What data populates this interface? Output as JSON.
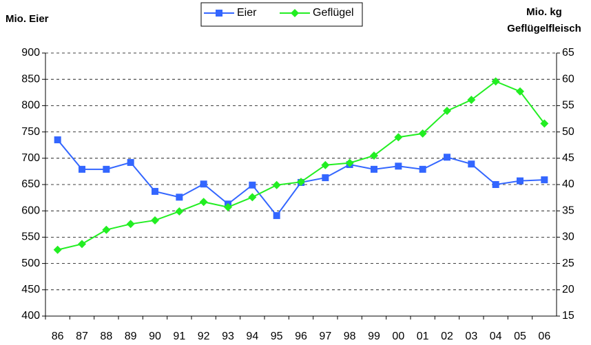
{
  "chart_data": {
    "type": "line",
    "y_label": "Mio. Eier",
    "y2_label": [
      "Mio. kg",
      "Geflügelfleisch"
    ],
    "categories": [
      "86",
      "87",
      "88",
      "89",
      "90",
      "91",
      "92",
      "93",
      "94",
      "95",
      "96",
      "97",
      "98",
      "99",
      "00",
      "01",
      "02",
      "03",
      "04",
      "05",
      "06"
    ],
    "series": [
      {
        "name": "Eier",
        "color": "#3366ff",
        "marker": "square",
        "axis": "y",
        "values": [
          735,
          679,
          679,
          692,
          637,
          626,
          651,
          613,
          649,
          591,
          654,
          663,
          688,
          679,
          685,
          679,
          702,
          689,
          650,
          657,
          659
        ]
      },
      {
        "name": "Geflügel",
        "color": "#22ee22",
        "marker": "diamond",
        "axis": "y2",
        "values": [
          27.6,
          28.7,
          31.4,
          32.5,
          33.2,
          34.9,
          36.7,
          35.7,
          37.6,
          39.9,
          40.5,
          43.7,
          44.1,
          45.5,
          49.0,
          49.7,
          54.0,
          56.1,
          59.6,
          57.7,
          51.6
        ]
      }
    ],
    "ylim": [
      400,
      900
    ],
    "yticks": [
      400,
      450,
      500,
      550,
      600,
      650,
      700,
      750,
      800,
      850,
      900
    ],
    "y2lim": [
      15,
      65
    ],
    "y2ticks": [
      15,
      20,
      25,
      30,
      35,
      40,
      45,
      50,
      55,
      60,
      65
    ],
    "grid": true,
    "legend": "top"
  }
}
